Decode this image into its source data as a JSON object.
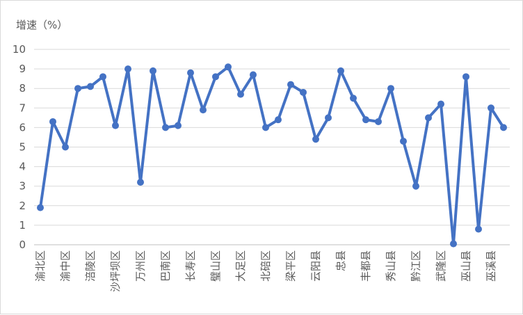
{
  "chart_data": {
    "type": "line",
    "title": "",
    "ylabel": "增速（%）",
    "xlabel": "",
    "ylim": [
      0,
      10
    ],
    "y_ticks": [
      "0",
      "1",
      "2",
      "3",
      "4",
      "5",
      "6",
      "7",
      "8",
      "9",
      "10"
    ],
    "grid": "horizontal",
    "legend": "none",
    "colors": {
      "line": "#4472c4",
      "grid": "#d9d9d9",
      "text": "#595959"
    },
    "categories": [
      "渝北区",
      "",
      "渝中区",
      "",
      "涪陵区",
      "",
      "沙坪坝区",
      "",
      "万州区",
      "",
      "巴南区",
      "",
      "长寿区",
      "",
      "璧山区",
      "",
      "大足区",
      "",
      "北碚区",
      "",
      "梁平区",
      "",
      "云阳县",
      "",
      "忠县",
      "",
      "丰都县",
      "",
      "秀山县",
      "",
      "黔江区",
      "",
      "武隆区",
      "",
      "巫山县",
      "",
      "巫溪县",
      ""
    ],
    "series": [
      {
        "values": [
          1.9,
          6.3,
          5.0,
          8.0,
          8.1,
          8.6,
          6.1,
          9.0,
          3.2,
          8.9,
          6.0,
          6.1,
          8.8,
          6.9,
          8.6,
          9.1,
          7.7,
          8.7,
          6.0,
          6.4,
          8.2,
          7.8,
          5.4,
          6.5,
          8.9,
          7.5,
          6.4,
          6.3,
          8.0,
          5.3,
          3.0,
          6.5,
          7.2,
          0.05,
          8.6,
          0.8,
          7.0,
          6.0
        ]
      }
    ]
  }
}
